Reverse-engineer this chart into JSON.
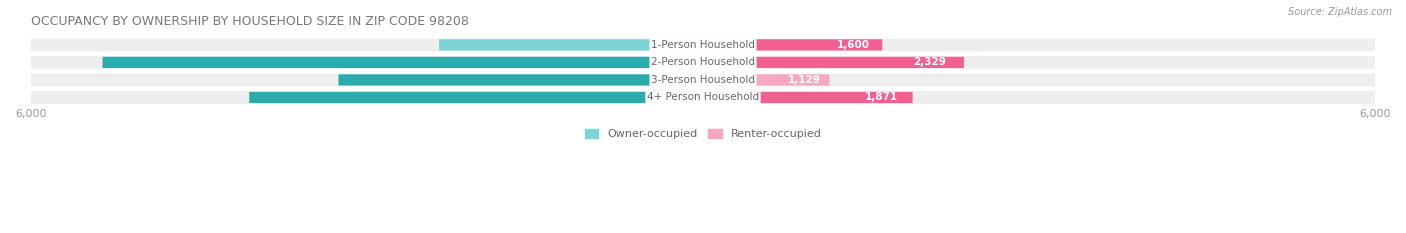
{
  "title": "OCCUPANCY BY OWNERSHIP BY HOUSEHOLD SIZE IN ZIP CODE 98208",
  "source": "Source: ZipAtlas.com",
  "categories": [
    "1-Person Household",
    "2-Person Household",
    "3-Person Household",
    "4+ Person Household"
  ],
  "owner_values": [
    2356,
    5359,
    3254,
    4050
  ],
  "renter_values": [
    1600,
    2329,
    1129,
    1871
  ],
  "owner_color_light": "#7dd4d4",
  "owner_color_dark": "#2aacac",
  "renter_color_light": "#f5a8c0",
  "renter_color_dark": "#f06090",
  "owner_label": "Owner-occupied",
  "renter_label": "Renter-occupied",
  "axis_max": 6000,
  "background_color": "#ffffff",
  "row_bg_color": "#eeeeee",
  "title_fontsize": 9,
  "source_fontsize": 7,
  "label_fontsize": 7.5,
  "tick_fontsize": 8,
  "legend_fontsize": 8,
  "title_color": "#777777",
  "axis_label_color": "#999999",
  "cat_label_color": "#666666",
  "value_color_inside": "#ffffff",
  "value_color_outside": "#888888"
}
